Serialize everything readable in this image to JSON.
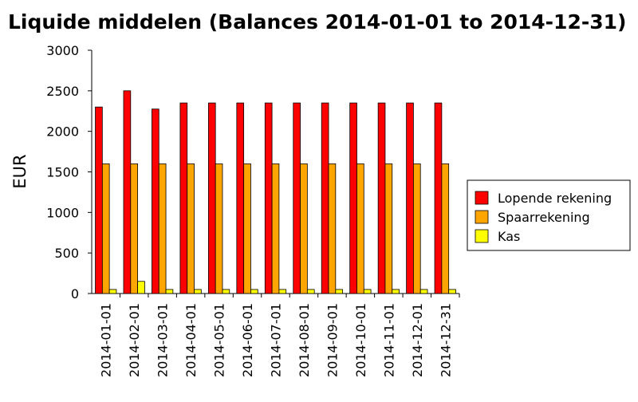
{
  "chart_data": {
    "type": "bar",
    "title": "Liquide middelen (Balances 2014-01-01 to 2014-12-31)",
    "xlabel": "",
    "ylabel": "EUR",
    "ylim": [
      0,
      3000
    ],
    "yticks": [
      0,
      500,
      1000,
      1500,
      2000,
      2500,
      3000
    ],
    "grid": false,
    "legend_position": "right",
    "categories": [
      "2014-01-01",
      "2014-02-01",
      "2014-03-01",
      "2014-04-01",
      "2014-05-01",
      "2014-06-01",
      "2014-07-01",
      "2014-08-01",
      "2014-09-01",
      "2014-10-01",
      "2014-11-01",
      "2014-12-01",
      "2014-12-31"
    ],
    "series": [
      {
        "name": "Lopende rekening",
        "color": "#ff0000",
        "values": [
          2300,
          2500,
          2275,
          2350,
          2350,
          2350,
          2350,
          2350,
          2350,
          2350,
          2350,
          2350,
          2350
        ]
      },
      {
        "name": "Spaarrekening",
        "color": "#ffa500",
        "values": [
          1600,
          1600,
          1600,
          1600,
          1600,
          1600,
          1600,
          1600,
          1600,
          1600,
          1600,
          1600,
          1600
        ]
      },
      {
        "name": "Kas",
        "color": "#ffff00",
        "values": [
          50,
          150,
          50,
          50,
          50,
          50,
          50,
          50,
          50,
          50,
          50,
          50,
          50
        ]
      }
    ]
  }
}
